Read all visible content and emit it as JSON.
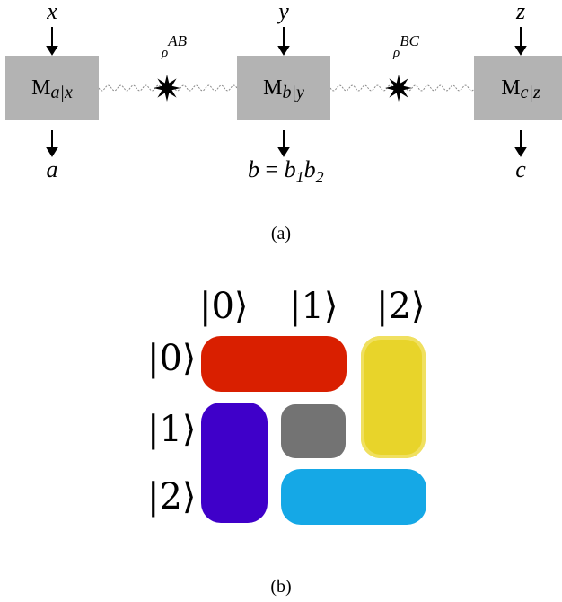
{
  "panel_a": {
    "inputs": [
      "x",
      "y",
      "z"
    ],
    "outputs": [
      "a",
      "b = b1b2",
      "c"
    ],
    "output_b_parts": {
      "b": "b",
      "eq": "=",
      "b1": "b",
      "s1": "1",
      "b2": "b",
      "s2": "2"
    },
    "boxes": [
      {
        "m": "M",
        "sub": "a|x"
      },
      {
        "m": "M",
        "sub": "b|y"
      },
      {
        "m": "M",
        "sub": "c|z"
      }
    ],
    "sources": [
      {
        "rho": "ρ",
        "sup": "AB"
      },
      {
        "rho": "ρ",
        "sup": "BC"
      }
    ],
    "colors": {
      "box": "#b3b3b3",
      "source": "#000000",
      "wire": "#888888"
    },
    "caption": "(a)"
  },
  "panel_b": {
    "column_kets": [
      "|0⟩",
      "|1⟩",
      "|2⟩"
    ],
    "row_kets": [
      "|0⟩",
      "|1⟩",
      "|2⟩"
    ],
    "tile_colors": {
      "red": "#d91f00",
      "yellow": "#e8d42a",
      "purple": "#3f00c9",
      "gray": "#737373",
      "cyan": "#15a8e6"
    },
    "caption": "(b)"
  }
}
